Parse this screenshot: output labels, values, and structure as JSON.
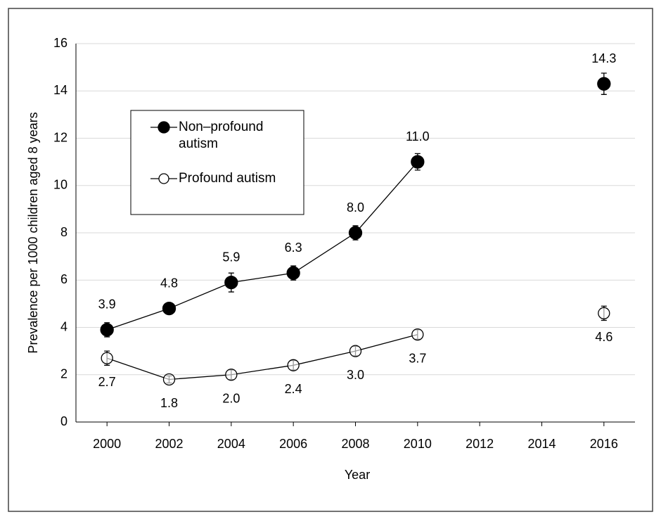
{
  "chart_data": {
    "type": "line",
    "x_label": "Year",
    "y_label": "Prevalence per 1000 children aged 8 years",
    "x": [
      2000,
      2002,
      2004,
      2006,
      2008,
      2010,
      2012,
      2014,
      2016
    ],
    "series": [
      {
        "name": "Non–profound autism",
        "color": "#000000",
        "marker_fill": "#000000",
        "label_position": "above",
        "values": [
          3.9,
          4.8,
          5.9,
          6.3,
          8.0,
          11.0,
          null,
          null,
          14.3
        ],
        "value_labels": [
          "3.9",
          "4.8",
          "5.9",
          "6.3",
          "8.0",
          "11.0",
          null,
          null,
          "14.3"
        ],
        "errors": [
          0.3,
          0.2,
          0.4,
          0.3,
          0.3,
          0.35,
          null,
          null,
          0.45
        ]
      },
      {
        "name": "Profound autism",
        "color": "#000000",
        "marker_fill": "#ffffff",
        "label_position": "below",
        "values": [
          2.7,
          1.8,
          2.0,
          2.4,
          3.0,
          3.7,
          null,
          null,
          4.6
        ],
        "value_labels": [
          "2.7",
          "1.8",
          "2.0",
          "2.4",
          "3.0",
          "3.7",
          null,
          null,
          "4.6"
        ],
        "errors": [
          0.3,
          0.15,
          0.2,
          0.2,
          0.2,
          0.2,
          null,
          null,
          0.3
        ]
      }
    ],
    "xlim": [
      1999,
      2017
    ],
    "xticks": [
      2000,
      2002,
      2004,
      2006,
      2008,
      2010,
      2012,
      2014,
      2016
    ],
    "ylim": [
      0,
      16
    ],
    "yticks": [
      0,
      2,
      4,
      6,
      8,
      10,
      12,
      14,
      16
    ],
    "grid": true,
    "legend": "upper-left"
  }
}
